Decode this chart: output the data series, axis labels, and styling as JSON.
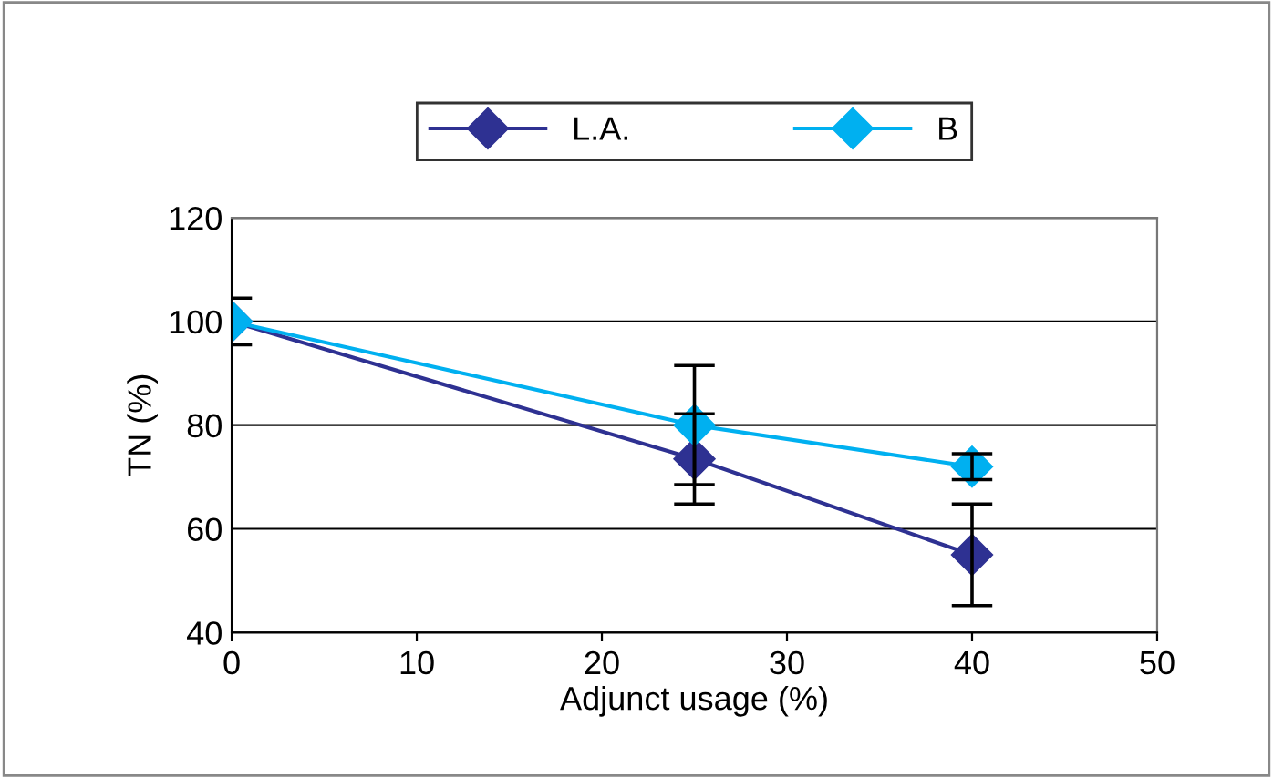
{
  "chart_data": {
    "type": "line",
    "xlabel": "Adjunct usage (%)",
    "ylabel": "TN (%)",
    "x": [
      0,
      25,
      40
    ],
    "series": [
      {
        "name": "L.A.",
        "color": "#2e3192",
        "values": [
          100,
          73.5,
          55
        ],
        "errors": [
          4.5,
          8.7,
          9.8
        ]
      },
      {
        "name": "B",
        "color": "#00b0f0",
        "values": [
          100,
          80,
          72
        ],
        "errors": [
          null,
          11.5,
          2.5
        ]
      }
    ],
    "xlim": [
      0,
      50
    ],
    "xticks": [
      0,
      10,
      20,
      30,
      40,
      50
    ],
    "ylim": [
      40,
      120
    ],
    "yticks": [
      40,
      60,
      80,
      100,
      120
    ],
    "grid": "y",
    "legend": "top",
    "marker": "diamond",
    "line_style": "solid"
  }
}
